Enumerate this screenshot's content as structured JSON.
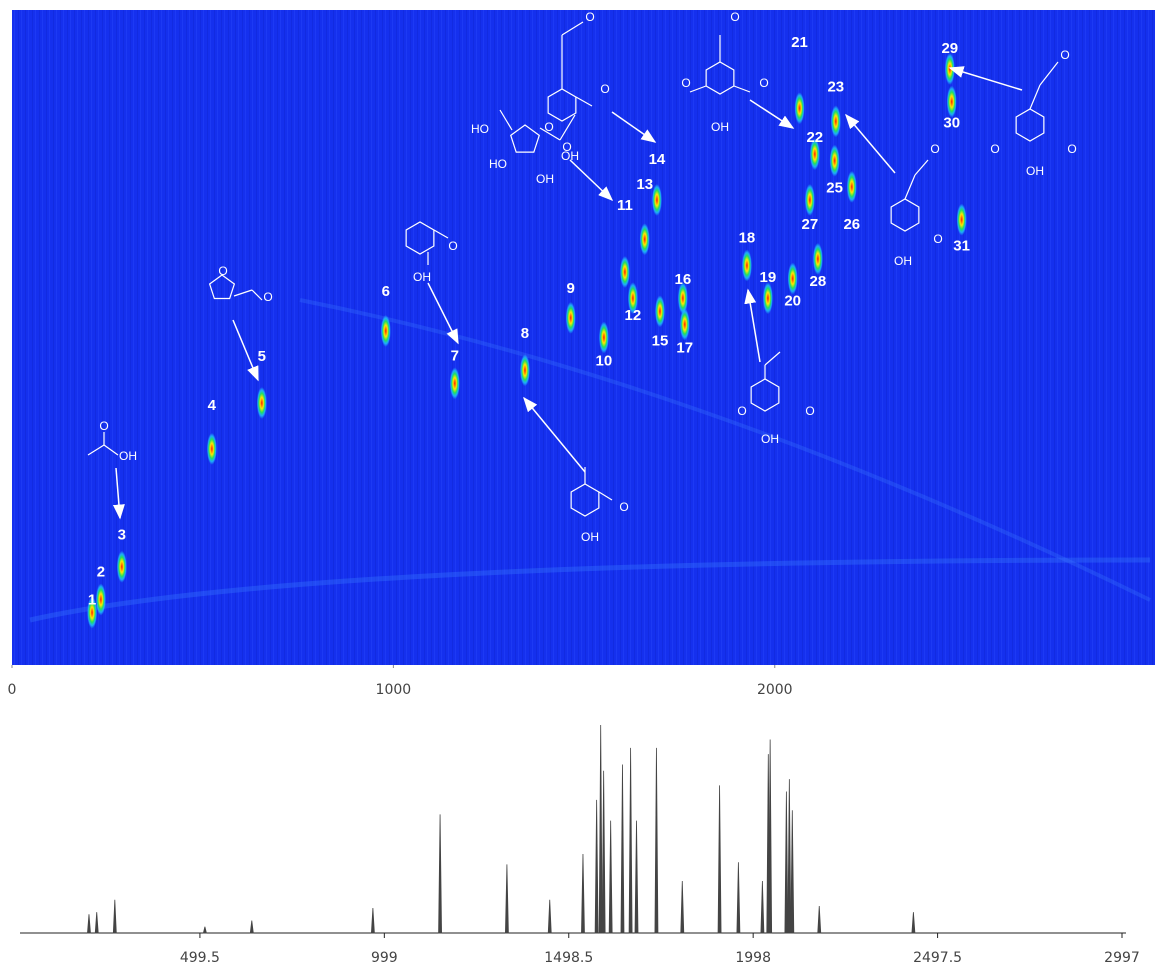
{
  "chart_data": [
    {
      "type": "contour",
      "xlim": [
        0,
        2997
      ],
      "ylim": [
        0,
        1
      ],
      "xticks": [
        0,
        1000,
        2000
      ],
      "background": "#1530ee",
      "peaks": [
        {
          "label": "1",
          "x": 210,
          "y": 0.08
        },
        {
          "label": "2",
          "x": 233,
          "y": 0.1
        },
        {
          "label": "3",
          "x": 288,
          "y": 0.15
        },
        {
          "label": "4",
          "x": 524,
          "y": 0.33
        },
        {
          "label": "5",
          "x": 655,
          "y": 0.4
        },
        {
          "label": "6",
          "x": 980,
          "y": 0.51
        },
        {
          "label": "7",
          "x": 1161,
          "y": 0.43
        },
        {
          "label": "8",
          "x": 1345,
          "y": 0.45
        },
        {
          "label": "9",
          "x": 1465,
          "y": 0.53
        },
        {
          "label": "10",
          "x": 1552,
          "y": 0.5
        },
        {
          "label": "11",
          "x": 1607,
          "y": 0.6
        },
        {
          "label": "12",
          "x": 1628,
          "y": 0.56
        },
        {
          "label": "13",
          "x": 1659,
          "y": 0.65
        },
        {
          "label": "14",
          "x": 1691,
          "y": 0.71
        },
        {
          "label": "15",
          "x": 1699,
          "y": 0.54
        },
        {
          "label": "16",
          "x": 1759,
          "y": 0.56
        },
        {
          "label": "17",
          "x": 1764,
          "y": 0.52
        },
        {
          "label": "18",
          "x": 1927,
          "y": 0.61
        },
        {
          "label": "19",
          "x": 1982,
          "y": 0.56
        },
        {
          "label": "20",
          "x": 2047,
          "y": 0.59
        },
        {
          "label": "21",
          "x": 2065,
          "y": 0.85
        },
        {
          "label": "22",
          "x": 2105,
          "y": 0.78
        },
        {
          "label": "23",
          "x": 2160,
          "y": 0.83
        },
        {
          "label": "25",
          "x": 2157,
          "y": 0.77
        },
        {
          "label": "26",
          "x": 2202,
          "y": 0.73
        },
        {
          "label": "27",
          "x": 2092,
          "y": 0.71
        },
        {
          "label": "28",
          "x": 2113,
          "y": 0.62
        },
        {
          "label": "29",
          "x": 2459,
          "y": 0.91
        },
        {
          "label": "30",
          "x": 2464,
          "y": 0.86
        },
        {
          "label": "31",
          "x": 2490,
          "y": 0.68
        }
      ],
      "structures": [
        {
          "texts": [
            "O",
            "OH"
          ]
        },
        {
          "texts": [
            "O",
            "O"
          ]
        },
        {
          "texts": [
            "OH",
            "O"
          ]
        },
        {
          "texts": [
            "OH",
            "O"
          ]
        },
        {
          "texts": [
            "O",
            "OH",
            "O"
          ]
        },
        {
          "texts": [
            "HO",
            "O",
            "O",
            "HO",
            "OH"
          ]
        },
        {
          "texts": [
            "O",
            "O",
            "OH",
            "O"
          ]
        },
        {
          "texts": [
            "O",
            "OH",
            "O"
          ]
        },
        {
          "texts": [
            "O",
            "O",
            "OH",
            "O"
          ]
        },
        {
          "texts": [
            "O",
            "OH",
            "O"
          ]
        }
      ]
    },
    {
      "type": "stem",
      "color": "#444444",
      "xlim": [
        0,
        2997
      ],
      "ylim": [
        0,
        100
      ],
      "xticks": [
        499.5,
        999,
        1498.5,
        1998,
        2497.5,
        2997
      ],
      "x": [
        199,
        220,
        269,
        513,
        640,
        968,
        1150,
        1331,
        1447,
        1537,
        1574,
        1585,
        1593,
        1612,
        1644,
        1666,
        1682,
        1736,
        1806,
        1907,
        1958,
        2023,
        2039,
        2044,
        2088,
        2096,
        2104,
        2177,
        2432
      ],
      "values": [
        9,
        10,
        16,
        3,
        6,
        12,
        57,
        33,
        16,
        38,
        64,
        100,
        78,
        54,
        81,
        89,
        54,
        89,
        25,
        71,
        34,
        25,
        86,
        93,
        68,
        74,
        59,
        13,
        10
      ]
    }
  ]
}
